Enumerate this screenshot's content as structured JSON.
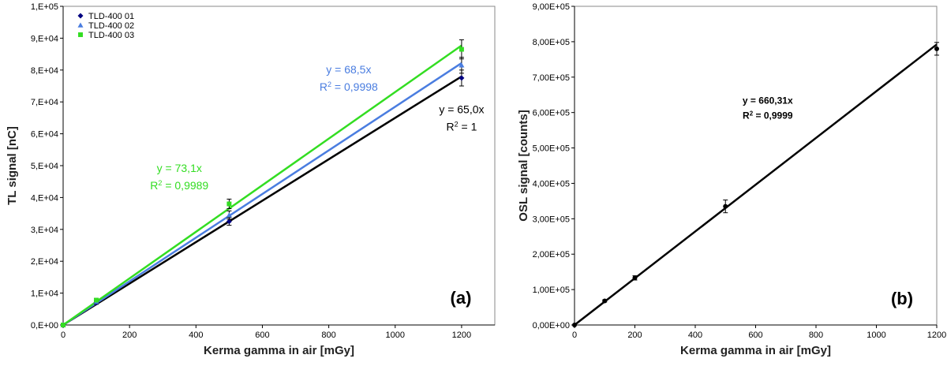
{
  "chart_data": [
    {
      "type": "scatter",
      "panel_label": "(a)",
      "xlabel": "Kerma gamma in air [mGy]",
      "ylabel": "TL signal [nC]",
      "xlim": [
        0,
        1300
      ],
      "ylim": [
        0,
        100000
      ],
      "x_ticks": [
        0,
        200,
        400,
        600,
        800,
        1000,
        1200
      ],
      "x_tick_labels": [
        "0",
        "200",
        "400",
        "600",
        "800",
        "1000",
        "1200"
      ],
      "y_ticks": [
        0,
        10000,
        20000,
        30000,
        40000,
        50000,
        60000,
        70000,
        80000,
        90000,
        100000
      ],
      "y_tick_labels": [
        "0,E+00",
        "1,E+04",
        "2,E+04",
        "3,E+04",
        "4,E+04",
        "5,E+04",
        "6,E+04",
        "7,E+04",
        "8,E+04",
        "9,E+04",
        "1,E+05"
      ],
      "legend_position": "top-left",
      "grid": false,
      "series": [
        {
          "name": "TLD-400 01",
          "color": "#000080",
          "marker": "diamond",
          "line_color": "#000000",
          "points": [
            {
              "x": 0,
              "y": 0,
              "err": 0
            },
            {
              "x": 100,
              "y": 7000,
              "err": 500
            },
            {
              "x": 500,
              "y": 32500,
              "err": 1200
            },
            {
              "x": 1200,
              "y": 77500,
              "err": 2500
            }
          ],
          "slope": 65.0
        },
        {
          "name": "TLD-400 02",
          "color": "#4a7de0",
          "marker": "triangle",
          "line_color": "#4a7de0",
          "points": [
            {
              "x": 0,
              "y": 0,
              "err": 0
            },
            {
              "x": 100,
              "y": 7300,
              "err": 500
            },
            {
              "x": 500,
              "y": 34500,
              "err": 1300
            },
            {
              "x": 1200,
              "y": 81500,
              "err": 2500
            }
          ],
          "slope": 68.5
        },
        {
          "name": "TLD-400 03",
          "color": "#33dd22",
          "marker": "square",
          "line_color": "#33dd22",
          "points": [
            {
              "x": 0,
              "y": 0,
              "err": 0
            },
            {
              "x": 100,
              "y": 7800,
              "err": 500
            },
            {
              "x": 500,
              "y": 38000,
              "err": 1500
            },
            {
              "x": 1200,
              "y": 86500,
              "err": 3000
            }
          ],
          "slope": 73.1
        }
      ],
      "annotations": [
        {
          "eq": "y = 73,1x",
          "r2_pre": "R",
          "r2_sup": "2",
          "r2_post": " = 0,9989",
          "color": "#33dd22",
          "x": 350,
          "y": 48000
        },
        {
          "eq": "y = 68,5x",
          "r2_pre": "R",
          "r2_sup": "2",
          "r2_post": " = 0,9998",
          "color": "#4a7de0",
          "x": 860,
          "y": 79000
        },
        {
          "eq": "y = 65,0x",
          "r2_pre": "R",
          "r2_sup": "2",
          "r2_post": " = 1",
          "color": "#000000",
          "x": 1200,
          "y": 66500
        }
      ]
    },
    {
      "type": "scatter",
      "panel_label": "(b)",
      "xlabel": "Kerma gamma in air [mGy]",
      "ylabel": "OSL signal [counts]",
      "xlim": [
        0,
        1200
      ],
      "ylim": [
        0,
        900000
      ],
      "x_ticks": [
        0,
        200,
        400,
        600,
        800,
        1000,
        1200
      ],
      "x_tick_labels": [
        "0",
        "200",
        "400",
        "600",
        "800",
        "1000",
        "1200"
      ],
      "y_ticks": [
        0,
        100000,
        200000,
        300000,
        400000,
        500000,
        600000,
        700000,
        800000,
        900000
      ],
      "y_tick_labels": [
        "0,00E+00",
        "1,00E+05",
        "2,00E+05",
        "3,00E+05",
        "4,00E+05",
        "5,00E+05",
        "6,00E+05",
        "7,00E+05",
        "8,00E+05",
        "9,00E+05"
      ],
      "grid": false,
      "series": [
        {
          "color": "#000000",
          "marker": "circle",
          "line_color": "#000000",
          "points": [
            {
              "x": 0,
              "y": 0,
              "err": 0
            },
            {
              "x": 100,
              "y": 68000,
              "err": 3000
            },
            {
              "x": 200,
              "y": 133000,
              "err": 6000
            },
            {
              "x": 500,
              "y": 335000,
              "err": 18000
            },
            {
              "x": 1200,
              "y": 780000,
              "err": 18000
            }
          ],
          "slope": 660.31
        }
      ],
      "annotations": [
        {
          "eq": "y = 660,31x",
          "r2_pre": "R",
          "r2_sup": "2",
          "r2_post": " = 0,9999",
          "color": "#000000",
          "x": 640,
          "y": 625000
        }
      ]
    }
  ]
}
